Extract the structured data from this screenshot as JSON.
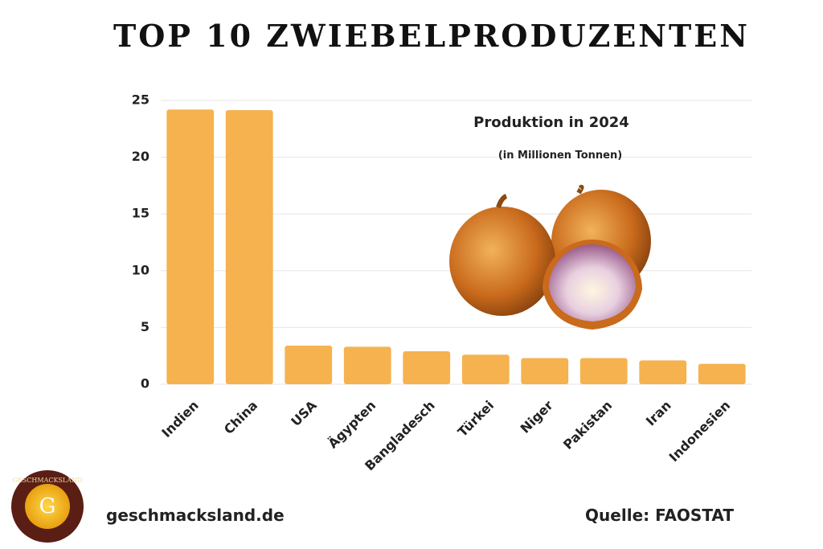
{
  "chart_data": {
    "type": "bar",
    "title": "TOP 10 ZWIEBELPRODUZENTEN",
    "subtitle": "Produktion in 2024",
    "unit_note": "(in Millionen Tonnen)",
    "categories": [
      "Indien",
      "China",
      "USA",
      "Ägypten",
      "Bangladesch",
      "Türkei",
      "Niger",
      "Pakistan",
      "Iran",
      "Indonesien"
    ],
    "values": [
      24.2,
      24.15,
      3.4,
      3.3,
      2.9,
      2.6,
      2.3,
      2.3,
      2.1,
      1.8
    ],
    "color": "#f5b24f",
    "ylim": [
      0,
      25
    ],
    "yticks": [
      0,
      5,
      10,
      15,
      20,
      25
    ],
    "grid": true
  },
  "footer": {
    "website": "geschmacksland.de",
    "source": "Quelle: FAOSTAT"
  },
  "logo": {
    "name": "GESCHMACKSLAND",
    "initial": "G"
  }
}
